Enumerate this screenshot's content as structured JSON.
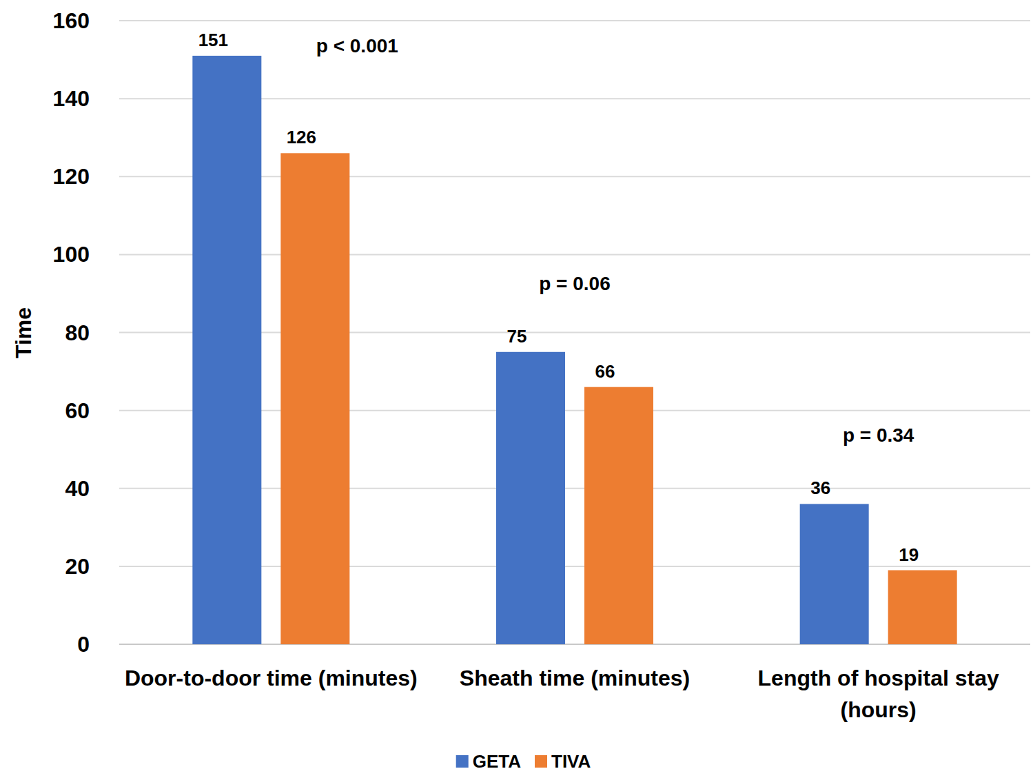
{
  "chart_data": {
    "type": "bar",
    "y_label": "Time",
    "categories": [
      "Door-to-door time (minutes)",
      "Sheath time (minutes)",
      "Length of hospital stay (hours)"
    ],
    "series": [
      {
        "name": "GETA",
        "color": "#4472c4",
        "values": [
          151,
          75,
          36
        ]
      },
      {
        "name": "TIVA",
        "color": "#ed7d31",
        "values": [
          126,
          66,
          19
        ]
      }
    ],
    "annotations": [
      "p < 0.001",
      "p = 0.06",
      "p = 0.34"
    ],
    "ylim": [
      0,
      160
    ],
    "yticks": [
      0,
      20,
      40,
      60,
      80,
      100,
      120,
      140,
      160
    ],
    "grid": true,
    "data_labels": true,
    "legend": "bottom"
  }
}
